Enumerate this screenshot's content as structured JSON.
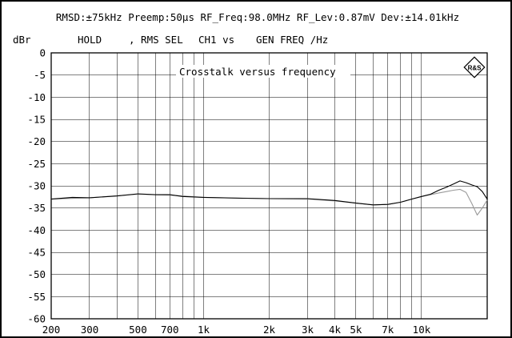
{
  "header": {
    "status_line": "RMSD:±75kHz Preemp:50μs RF_Freq:98.0MHz RF_Lev:0.87mV Dev:±14.01kHz"
  },
  "plot_info": {
    "y_unit_label": "dBr",
    "mode": "HOLD",
    "detector": ", RMS SEL",
    "channel": "CH1 vs",
    "x_quantity": "GEN FREQ /Hz"
  },
  "logo": {
    "name": "rohde-schwarz-logo",
    "text": "R&S"
  },
  "colors": {
    "background": "#ffffff",
    "grid": "#000000",
    "trace_main": "#000000",
    "trace_secondary": "#9a9a9a"
  },
  "chart_data": {
    "type": "line",
    "title": "Crosstalk versus frequency",
    "xlabel": "GEN FREQ /Hz",
    "ylabel": "dBr",
    "x_scale": "log",
    "xlim": [
      200,
      20000
    ],
    "ylim": [
      -60,
      0
    ],
    "grid": true,
    "x_tick_labels": [
      "200",
      "300",
      "500",
      "700",
      "1k",
      "2k",
      "3k",
      "4k",
      "5k",
      "7k",
      "10k"
    ],
    "x_tick_values": [
      200,
      300,
      500,
      700,
      1000,
      2000,
      3000,
      4000,
      5000,
      7000,
      10000
    ],
    "y_tick_labels": [
      "0",
      "-5",
      "-10",
      "-15",
      "-20",
      "-25",
      "-30",
      "-35",
      "-40",
      "-45",
      "-50",
      "-55",
      "-60"
    ],
    "y_tick_values": [
      0,
      -5,
      -10,
      -15,
      -20,
      -25,
      -30,
      -35,
      -40,
      -45,
      -50,
      -55,
      -60
    ],
    "series": [
      {
        "x": [
          200,
          250,
          300,
          400,
          500,
          600,
          700,
          800,
          1000,
          1500,
          2000,
          3000,
          4000,
          5000,
          6000,
          7000,
          8000,
          9000,
          10000,
          11000,
          12000,
          13000,
          14000,
          15000,
          16000,
          17000,
          18000,
          19000,
          20000
        ],
        "y": [
          -33.0,
          -32.6,
          -32.7,
          -32.3,
          -31.8,
          -32.0,
          -32.0,
          -32.4,
          -32.6,
          -32.8,
          -32.9,
          -32.9,
          -33.3,
          -33.9,
          -34.3,
          -34.2,
          -33.7,
          -33.0,
          -32.4,
          -31.9,
          -31.0,
          -30.3,
          -29.6,
          -28.9,
          -29.3,
          -29.8,
          -30.2,
          -31.3,
          -33.0
        ],
        "color": "#000000"
      },
      {
        "x": [
          200,
          300,
          500,
          700,
          1000,
          2000,
          3000,
          4000,
          5000,
          6000,
          7000,
          8000,
          9000,
          10000,
          11000,
          12000,
          13000,
          14000,
          15000,
          16000,
          17000,
          18000,
          19000,
          20000
        ],
        "y": [
          -33.0,
          -32.7,
          -31.9,
          -32.1,
          -32.6,
          -32.9,
          -33.0,
          -33.4,
          -33.9,
          -34.3,
          -34.2,
          -33.7,
          -33.0,
          -32.4,
          -32.0,
          -31.6,
          -31.3,
          -31.0,
          -30.8,
          -31.5,
          -34.0,
          -36.6,
          -35.0,
          -33.2
        ],
        "color": "#9a9a9a"
      }
    ]
  }
}
